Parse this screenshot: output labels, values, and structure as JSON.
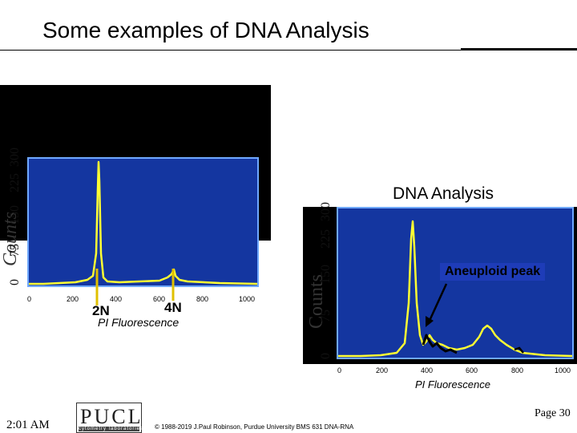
{
  "title": "Some examples of DNA Analysis",
  "left_panel": {
    "y_label": "Counts",
    "y_ticks": [
      "0",
      "75",
      "150",
      "225",
      "300"
    ],
    "x_ticks": [
      "0",
      "200",
      "400",
      "600",
      "800",
      "1000"
    ],
    "peak_2n": "2N",
    "peak_4n": "4N",
    "x_label": "PI Fluorescence"
  },
  "right_panel": {
    "heading": "DNA Analysis",
    "y_label": "Counts",
    "y_ticks": [
      "0",
      "75",
      "150",
      "225",
      "300"
    ],
    "aneuploid_label": "Aneuploid peak",
    "x_ticks": [
      "0",
      "200",
      "400",
      "600",
      "800",
      "1000"
    ],
    "x_label": "PI Fluorescence"
  },
  "footer": {
    "time": "2:01 AM",
    "logo_letters": "PUCL",
    "logo_sub": "cytometry laboratories",
    "copyright": "© 1988-2019 J.Paul Robinson, Purdue University BMS 631 DNA-RNA",
    "page": "Page 30"
  },
  "colors": {
    "plot_bg": "#1436a0",
    "trace": "#ffff33",
    "highlight_trace": "#000000",
    "arrow": "#e0c000"
  }
}
